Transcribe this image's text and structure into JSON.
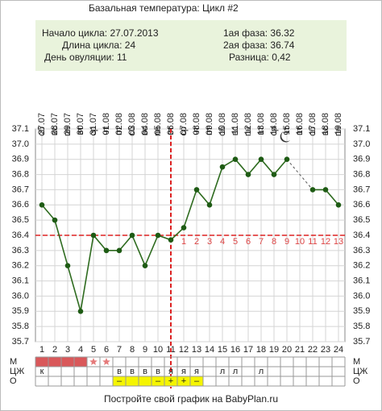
{
  "chart_data": {
    "type": "line",
    "title": "Базальная температура: Цикл #2",
    "info": {
      "start": "Начало цикла: 27.07.2013",
      "length": "Длина цикла: 24",
      "ovulation": "День овуляции: 11",
      "phase1": "1ая фаза: 36.32",
      "phase2": "2ая фаза: 36.74",
      "difference": "Разница: 0,42"
    },
    "x": [
      1,
      2,
      3,
      4,
      5,
      6,
      7,
      8,
      9,
      10,
      11,
      12,
      13,
      14,
      15,
      16,
      17,
      18,
      19,
      20,
      21,
      22,
      23,
      24
    ],
    "xlim": [
      0.5,
      24.5
    ],
    "dates": [
      "27.07",
      "28.07",
      "29.07",
      "30.07",
      "31.07",
      "01.08",
      "02.08",
      "03.08",
      "04.08",
      "05.08",
      "06.08",
      "07.08",
      "08.08",
      "09.08",
      "10.08",
      "11.08",
      "12.08",
      "13.08",
      "14.08",
      "15.08",
      "16.08",
      "17.08",
      "18.08",
      "19.08"
    ],
    "weekdays": [
      "сб",
      "вс",
      "пн",
      "вт",
      "ср",
      "чт",
      "пт",
      "сб",
      "вс",
      "пн",
      "вт",
      "ср",
      "чт",
      "пт",
      "сб",
      "вс",
      "пн",
      "вт",
      "ср",
      "чт",
      "пт",
      "сб",
      "вс",
      "пн"
    ],
    "series": [
      {
        "name": "Температура",
        "color": "#2e6b1f",
        "values": [
          36.6,
          36.5,
          36.2,
          35.9,
          36.4,
          36.3,
          36.3,
          36.4,
          36.2,
          36.4,
          36.37,
          36.45,
          36.7,
          36.6,
          36.85,
          36.9,
          36.8,
          36.9,
          36.8,
          36.9,
          null,
          36.7,
          36.7,
          36.6
        ]
      }
    ],
    "ylim": [
      35.7,
      37.1
    ],
    "yticks": [
      35.7,
      35.8,
      35.9,
      {
        "value": 36,
        "label": "36.0"
      },
      36.1,
      36.2,
      36.3,
      36.4,
      36.5,
      36.6,
      36.7,
      36.8,
      36.9,
      {
        "value": 37,
        "label": "37.0"
      },
      37.1
    ],
    "grid": true,
    "coverline": 36.4,
    "ovulation_day": 11,
    "phase2_days": [
      1,
      2,
      3,
      4,
      5,
      6,
      7,
      8,
      9,
      10,
      11,
      12,
      13
    ],
    "row_labels": [
      "М",
      "ЦЖ",
      "О"
    ],
    "menstruation_days": [
      1,
      2,
      3,
      4
    ],
    "spotting_days": [
      5,
      6
    ],
    "mucus": [
      "к",
      null,
      null,
      null,
      null,
      null,
      "в",
      "в",
      "в",
      "в",
      "я",
      "я",
      "я",
      null,
      "л",
      "л",
      null,
      "л",
      null,
      null,
      null,
      null,
      null,
      null
    ],
    "ovulation_test_days": [
      7,
      8,
      9,
      10,
      11,
      12,
      13
    ],
    "ovulation_tests": [
      null,
      null,
      null,
      null,
      null,
      null,
      "–",
      null,
      null,
      "–",
      "+",
      "+",
      "–",
      null,
      null,
      null,
      null,
      null,
      null,
      null,
      null,
      null,
      null,
      null
    ],
    "footer": "Постройте свой график на BabyPlan.ru"
  }
}
